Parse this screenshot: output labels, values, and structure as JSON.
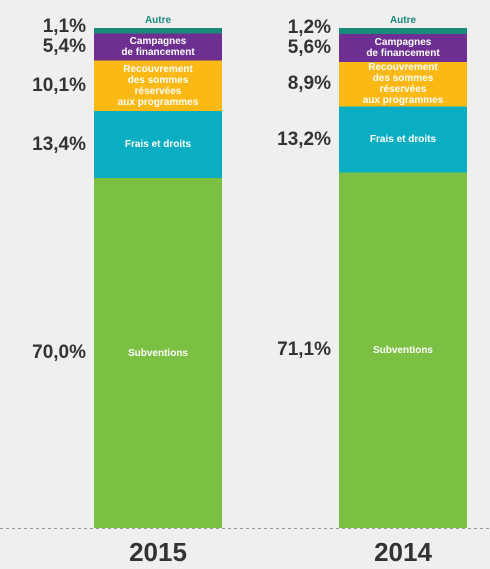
{
  "chart_data": {
    "type": "bar",
    "stacked": true,
    "categories": [
      "2015",
      "2014"
    ],
    "series": [
      {
        "name": "Subventions",
        "color": "#7bc043",
        "values": [
          70.0,
          71.1
        ],
        "value_labels": [
          "70,0%",
          "71,1%"
        ]
      },
      {
        "name": "Frais et droits",
        "color": "#0aaec2",
        "values": [
          13.4,
          13.2
        ],
        "value_labels": [
          "13,4%",
          "13,2%"
        ]
      },
      {
        "name": "Recouvrement\ndes sommes\nréservées\naux programmes",
        "color": "#fdb913",
        "values": [
          10.1,
          8.9
        ],
        "value_labels": [
          "10,1%",
          "8,9%"
        ]
      },
      {
        "name": "Campagnes\nde financement",
        "color": "#6d2f91",
        "values": [
          5.4,
          5.6
        ],
        "value_labels": [
          "5,4%",
          "5,6%"
        ]
      },
      {
        "name": "Autre",
        "color": "#1a8a7a",
        "values": [
          1.1,
          1.2
        ],
        "value_labels": [
          "1,1%",
          "1,2%"
        ]
      }
    ],
    "ylim": [
      0,
      100
    ]
  }
}
